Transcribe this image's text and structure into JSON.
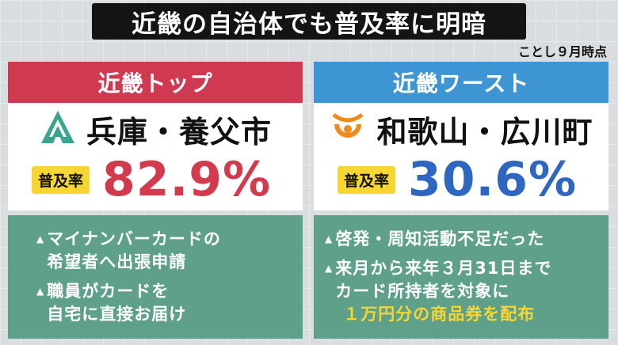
{
  "title": "近畿の自治体でも普及率に明暗",
  "date_note": "ことし９月時点",
  "top": {
    "header": "近畿トップ",
    "municipality": "兵庫・養父市",
    "rate_label": "普及率",
    "rate_value": "82.9%",
    "color": "#cf3a50",
    "icon": "yabu-city-emblem-icon",
    "items": [
      {
        "marker": "▲",
        "lines": [
          "マイナンバーカードの",
          "希望者へ出張申請"
        ]
      },
      {
        "marker": "▲",
        "lines": [
          "職員がカードを",
          "自宅に直接お届け"
        ]
      }
    ]
  },
  "worst": {
    "header": "近畿ワースト",
    "municipality": "和歌山・広川町",
    "rate_label": "普及率",
    "rate_value": "30.6%",
    "color": "#3d95d3",
    "icon": "hirogawa-town-emblem-icon",
    "items": [
      {
        "marker": "▲",
        "lines": [
          "啓発・周知活動不足だった"
        ]
      },
      {
        "marker": "▲",
        "lines": [
          "来月から来年３月31日まで",
          "カード所持者を対象に"
        ],
        "highlight": "１万円分の商品券を配布"
      }
    ]
  }
}
